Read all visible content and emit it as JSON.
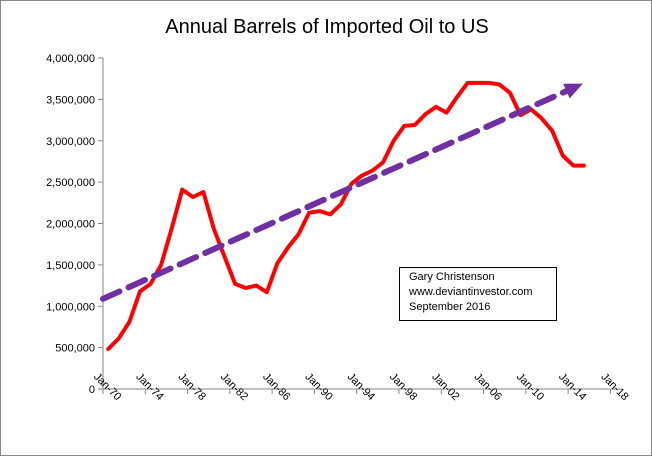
{
  "chart_data": {
    "type": "line",
    "title": "Annual Barrels of Imported Oil to US",
    "xlabel": "",
    "ylabel": "",
    "ylim": [
      0,
      4000000
    ],
    "yticks": [
      "0",
      "500,000",
      "1,000,000",
      "1,500,000",
      "2,000,000",
      "2,500,000",
      "3,000,000",
      "3,500,000",
      "4,000,000"
    ],
    "xticks": [
      "Jan-70",
      "Jan-74",
      "Jan-78",
      "Jan-82",
      "Jan-86",
      "Jan-90",
      "Jan-94",
      "Jan-98",
      "Jan-02",
      "Jan-06",
      "Jan-10",
      "Jan-14",
      "Jan-18"
    ],
    "xlim": [
      1970,
      2018
    ],
    "grid": false,
    "series": [
      {
        "color": "#ff0000",
        "x": [
          1970,
          1971,
          1972,
          1973,
          1974,
          1975,
          1976,
          1977,
          1978,
          1979,
          1980,
          1981,
          1982,
          1983,
          1984,
          1985,
          1986,
          1987,
          1988,
          1989,
          1990,
          1991,
          1992,
          1993,
          1994,
          1995,
          1996,
          1997,
          1998,
          1999,
          2000,
          2001,
          2002,
          2003,
          2004,
          2005,
          2006,
          2007,
          2008,
          2009,
          2010,
          2011,
          2012,
          2013,
          2014,
          2015
        ],
        "values": [
          483000,
          613000,
          811000,
          1180000,
          1270000,
          1500000,
          1940000,
          2410000,
          2320000,
          2380000,
          1930000,
          1600000,
          1270000,
          1220000,
          1250000,
          1170000,
          1520000,
          1710000,
          1870000,
          2130000,
          2150000,
          2110000,
          2230000,
          2480000,
          2580000,
          2640000,
          2740000,
          3000000,
          3180000,
          3190000,
          3320000,
          3410000,
          3340000,
          3530000,
          3700000,
          3700000,
          3700000,
          3680000,
          3580000,
          3310000,
          3380000,
          3270000,
          3120000,
          2820000,
          2700000,
          2700000
        ]
      },
      {
        "style": "dashed-arrow",
        "color": "#7030a0",
        "x": [
          1970,
          2015.4
        ],
        "values": [
          1090000,
          3690000
        ]
      }
    ],
    "annotation": [
      "Gary Christenson",
      "www.deviantinvestor.com",
      "September  2016"
    ]
  }
}
